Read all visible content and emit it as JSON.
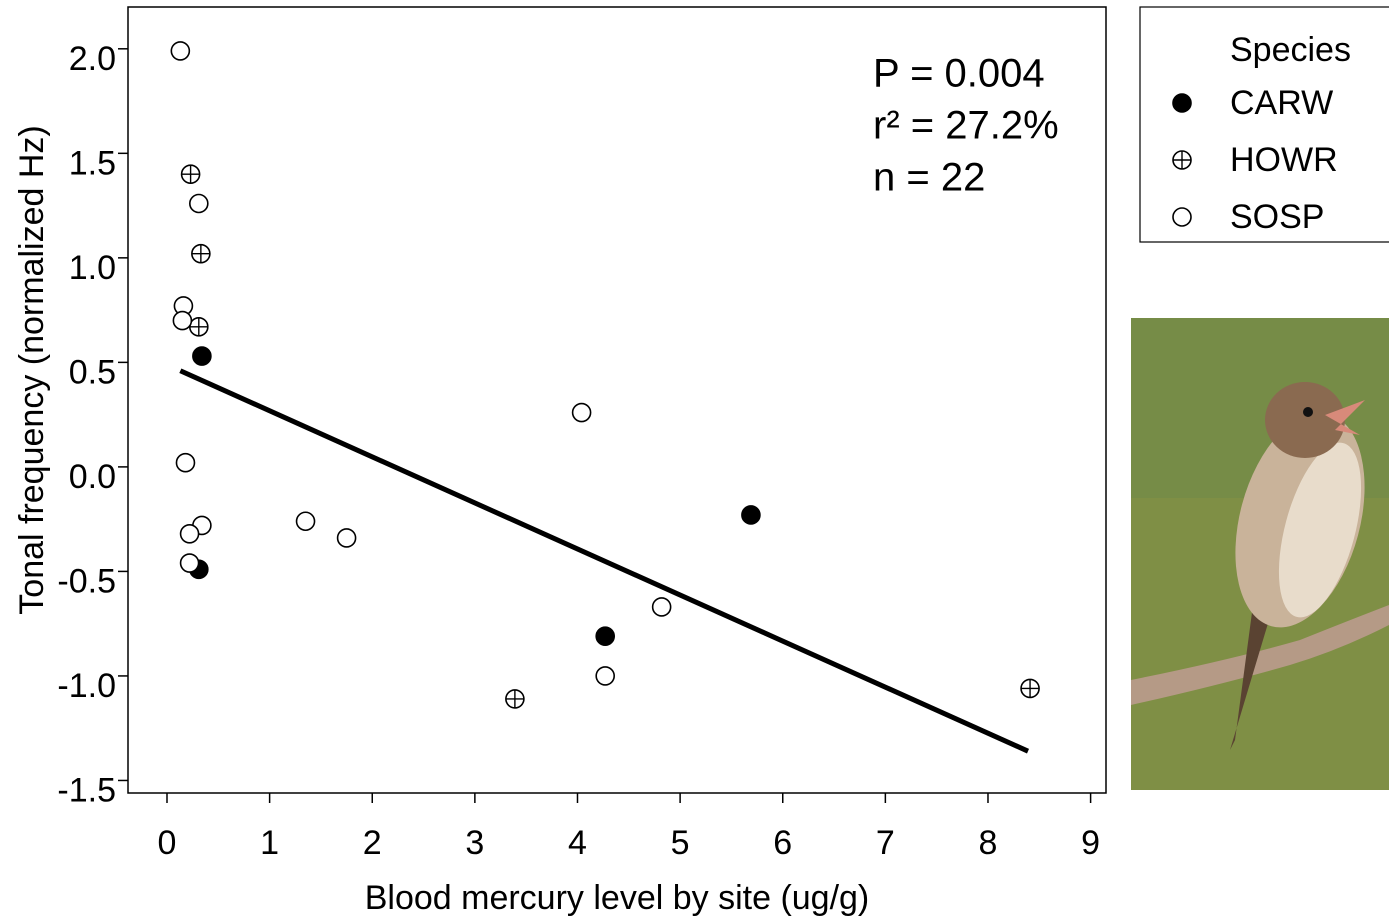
{
  "chart_data": {
    "type": "scatter",
    "xlabel": "Blood mercury level by site (ug/g)",
    "ylabel": "Tonal frequency (normalized Hz)",
    "xlim": [
      -0.38,
      9.15
    ],
    "ylim": [
      -1.56,
      2.2
    ],
    "xticks": [
      0,
      1,
      2,
      3,
      4,
      5,
      6,
      7,
      8,
      9
    ],
    "yticks": [
      {
        "value": 2,
        "label": "2.0"
      },
      1.5,
      {
        "value": 1,
        "label": "1.0"
      },
      0.5,
      {
        "value": 0,
        "label": "0.0"
      },
      -0.5,
      {
        "value": -1,
        "label": "-1.0"
      },
      -1.5
    ],
    "grid": false,
    "annotations": [
      "P = 0.004",
      "r² = 27.2%",
      "n = 22"
    ],
    "legend_title": "Species",
    "legend_position": "outside-right",
    "series": [
      {
        "name": "CARW",
        "color": "#000000",
        "marker": "filled",
        "x": [
          0.34,
          0.31,
          4.27,
          5.69
        ],
        "y": [
          0.53,
          -0.49,
          -0.81,
          -0.23
        ]
      },
      {
        "name": "HOWR",
        "color": "#000000",
        "marker": "crossed",
        "x": [
          0.23,
          0.33,
          0.31,
          3.39,
          8.41
        ],
        "y": [
          1.4,
          1.02,
          0.67,
          -1.11,
          -1.06
        ]
      },
      {
        "name": "SOSP",
        "color": "#000000",
        "marker": "open",
        "x": [
          0.13,
          0.31,
          0.16,
          0.15,
          0.18,
          0.34,
          0.22,
          0.22,
          1.35,
          1.75,
          4.04,
          4.82,
          4.27
        ],
        "y": [
          1.99,
          1.26,
          0.77,
          0.7,
          0.02,
          -0.28,
          -0.32,
          -0.46,
          -0.26,
          -0.34,
          0.26,
          -0.67,
          -1.0
        ]
      }
    ],
    "trend": {
      "x": [
        0.13,
        8.39
      ],
      "y": [
        0.46,
        -1.36
      ],
      "color": "#000000"
    }
  }
}
